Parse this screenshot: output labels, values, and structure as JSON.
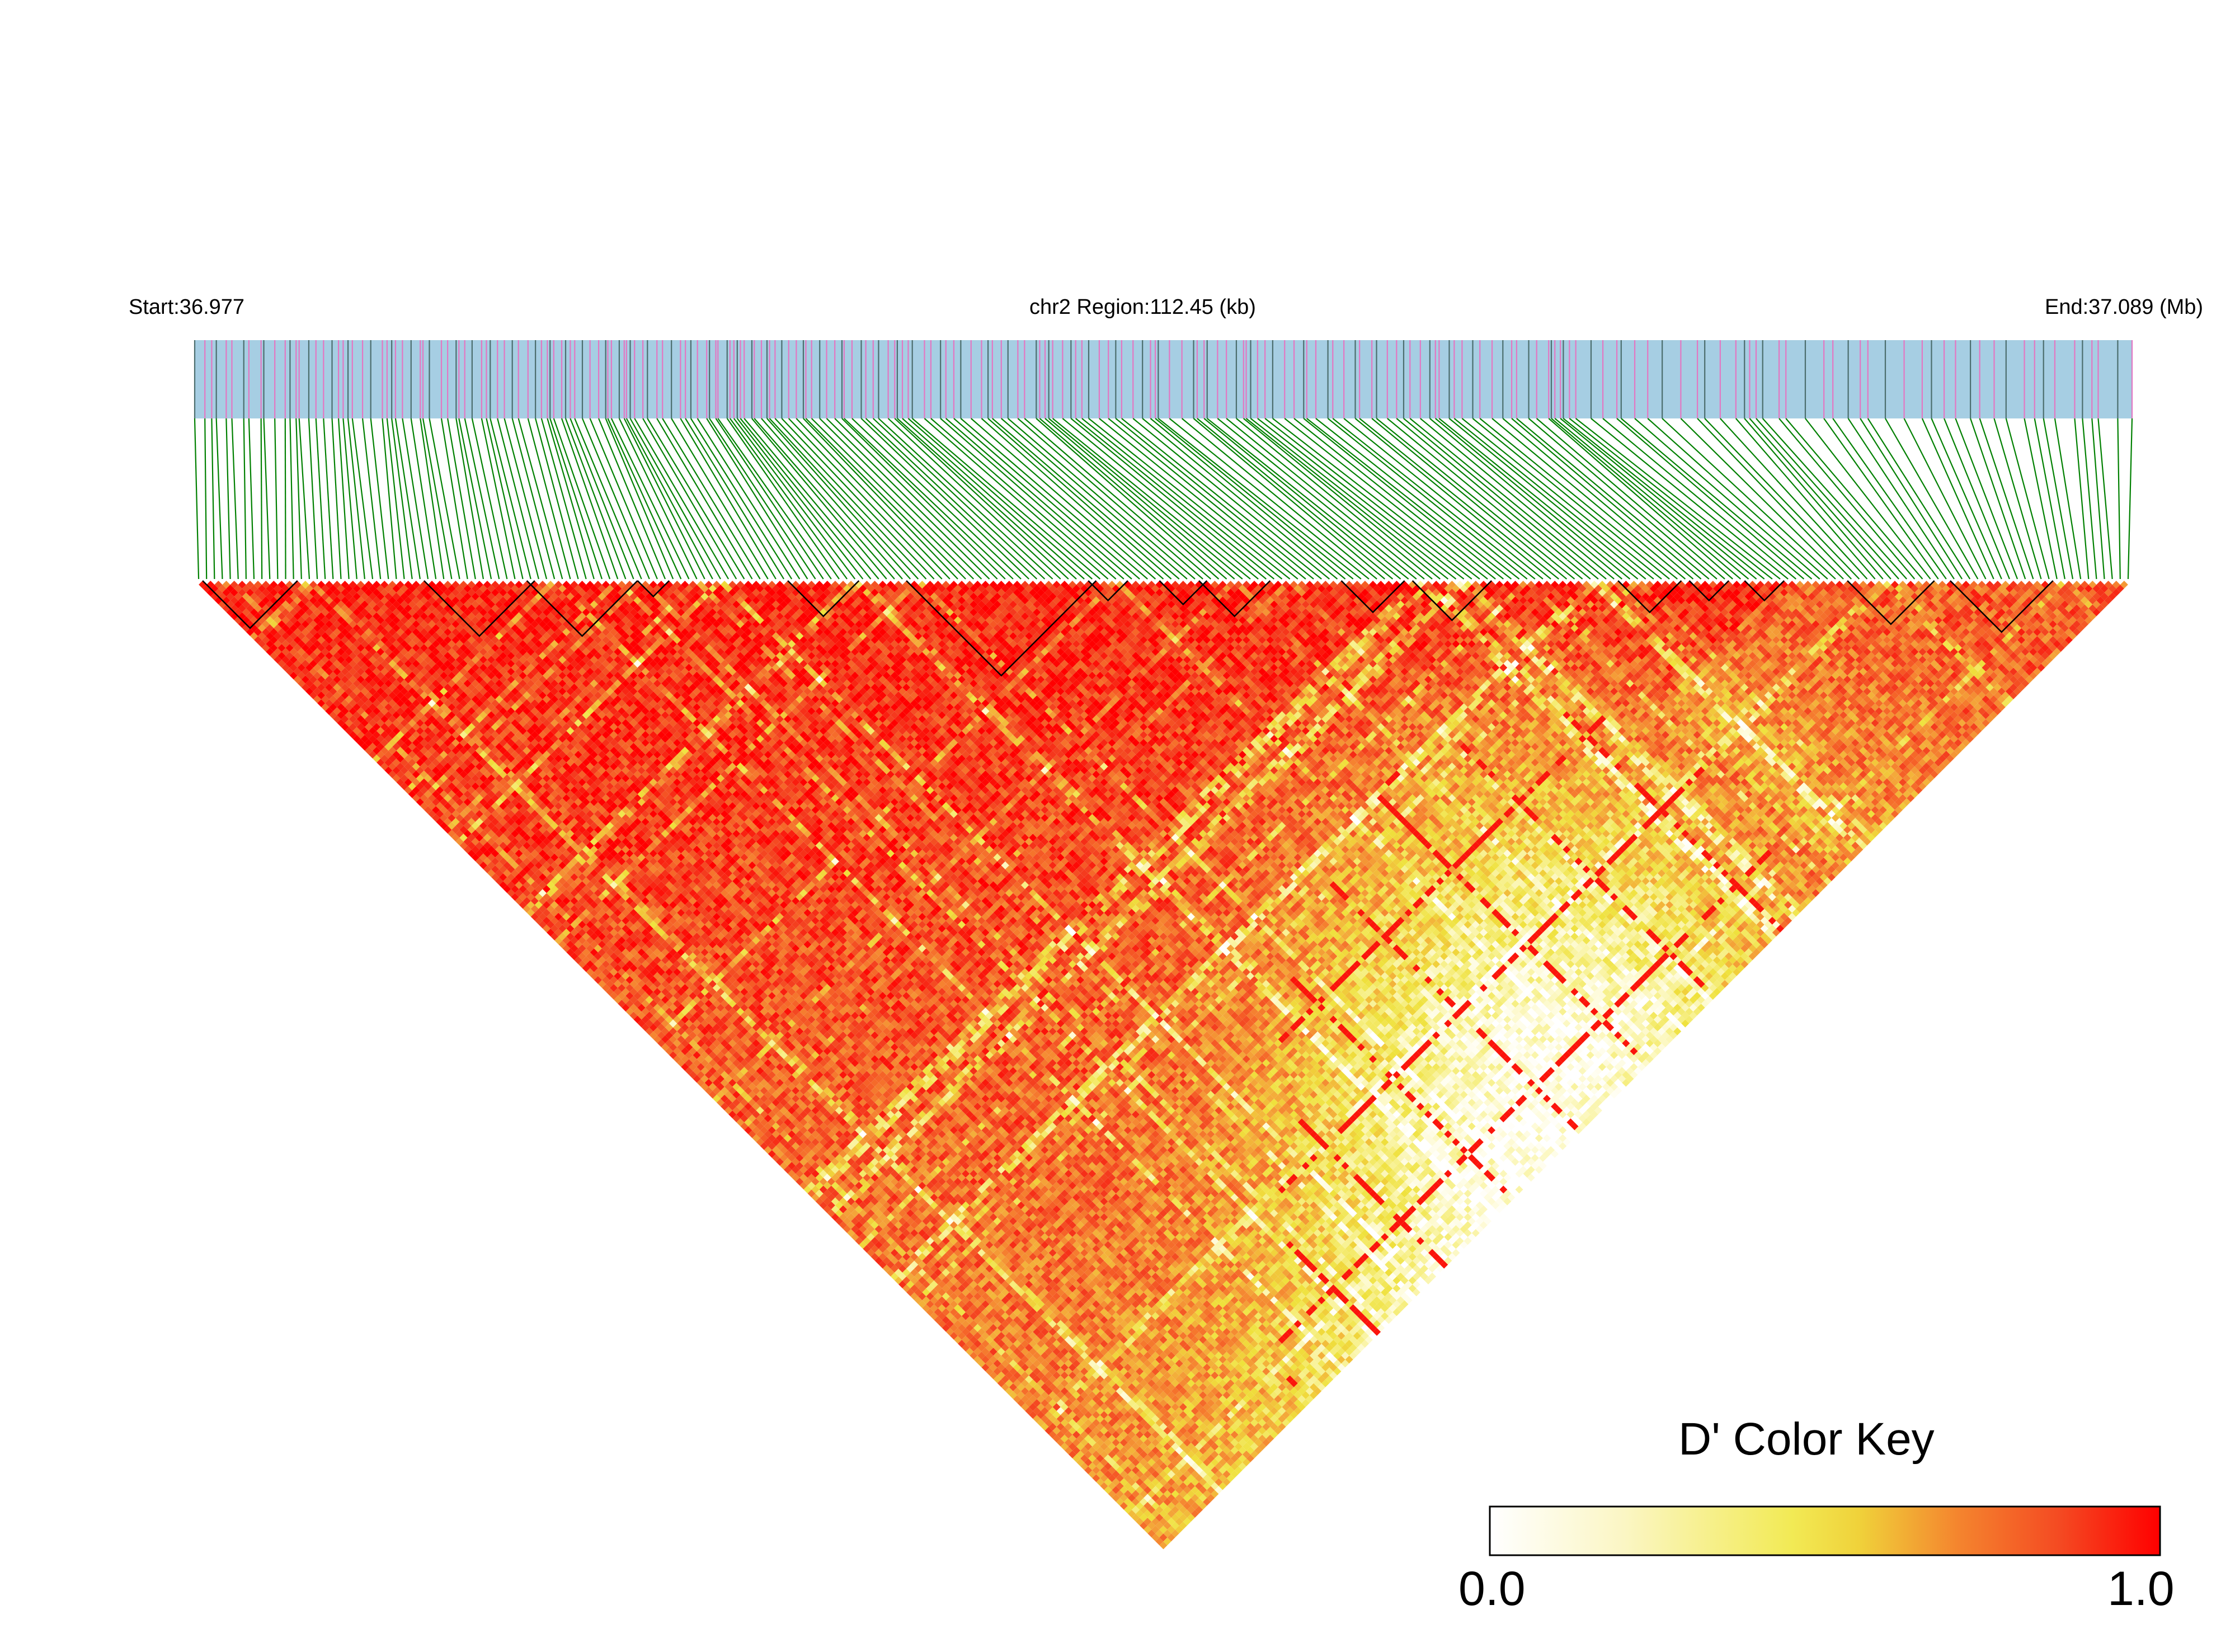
{
  "header": {
    "start_label": "Start:36.977",
    "region_label": "chr2 Region:112.45 (kb)",
    "end_label": "End:37.089 (Mb)"
  },
  "chart_data": {
    "type": "heatmap",
    "subtype": "linkage-disequilibrium-triangle",
    "title": "",
    "chromosome": "chr2",
    "region_start_mb": 36.977,
    "region_end_mb": 37.089,
    "region_size_kb": 112.45,
    "n_snps_approx": 245,
    "statistic": "D'",
    "value_range": [
      0.0,
      1.0
    ],
    "color_scale": [
      "#ffffff",
      "#fefbd9",
      "#f7f08a",
      "#efe13c",
      "#f4a93a",
      "#f5722c",
      "#f43b1e",
      "#ff0000"
    ],
    "snp_bar_color": "#a6cee3",
    "snp_marker_colors": [
      "#e377c2",
      "#4c6e6e"
    ],
    "connector_color": "#008000",
    "block_outline_color": "#000000",
    "ld_pattern_summary": "mostly high D' (red) near diagonal and left half; lower D' (yellow/white) band across lower-right region",
    "legend": {
      "title": "D' Color Key",
      "min_label": "0.0",
      "max_label": "1.0"
    }
  }
}
